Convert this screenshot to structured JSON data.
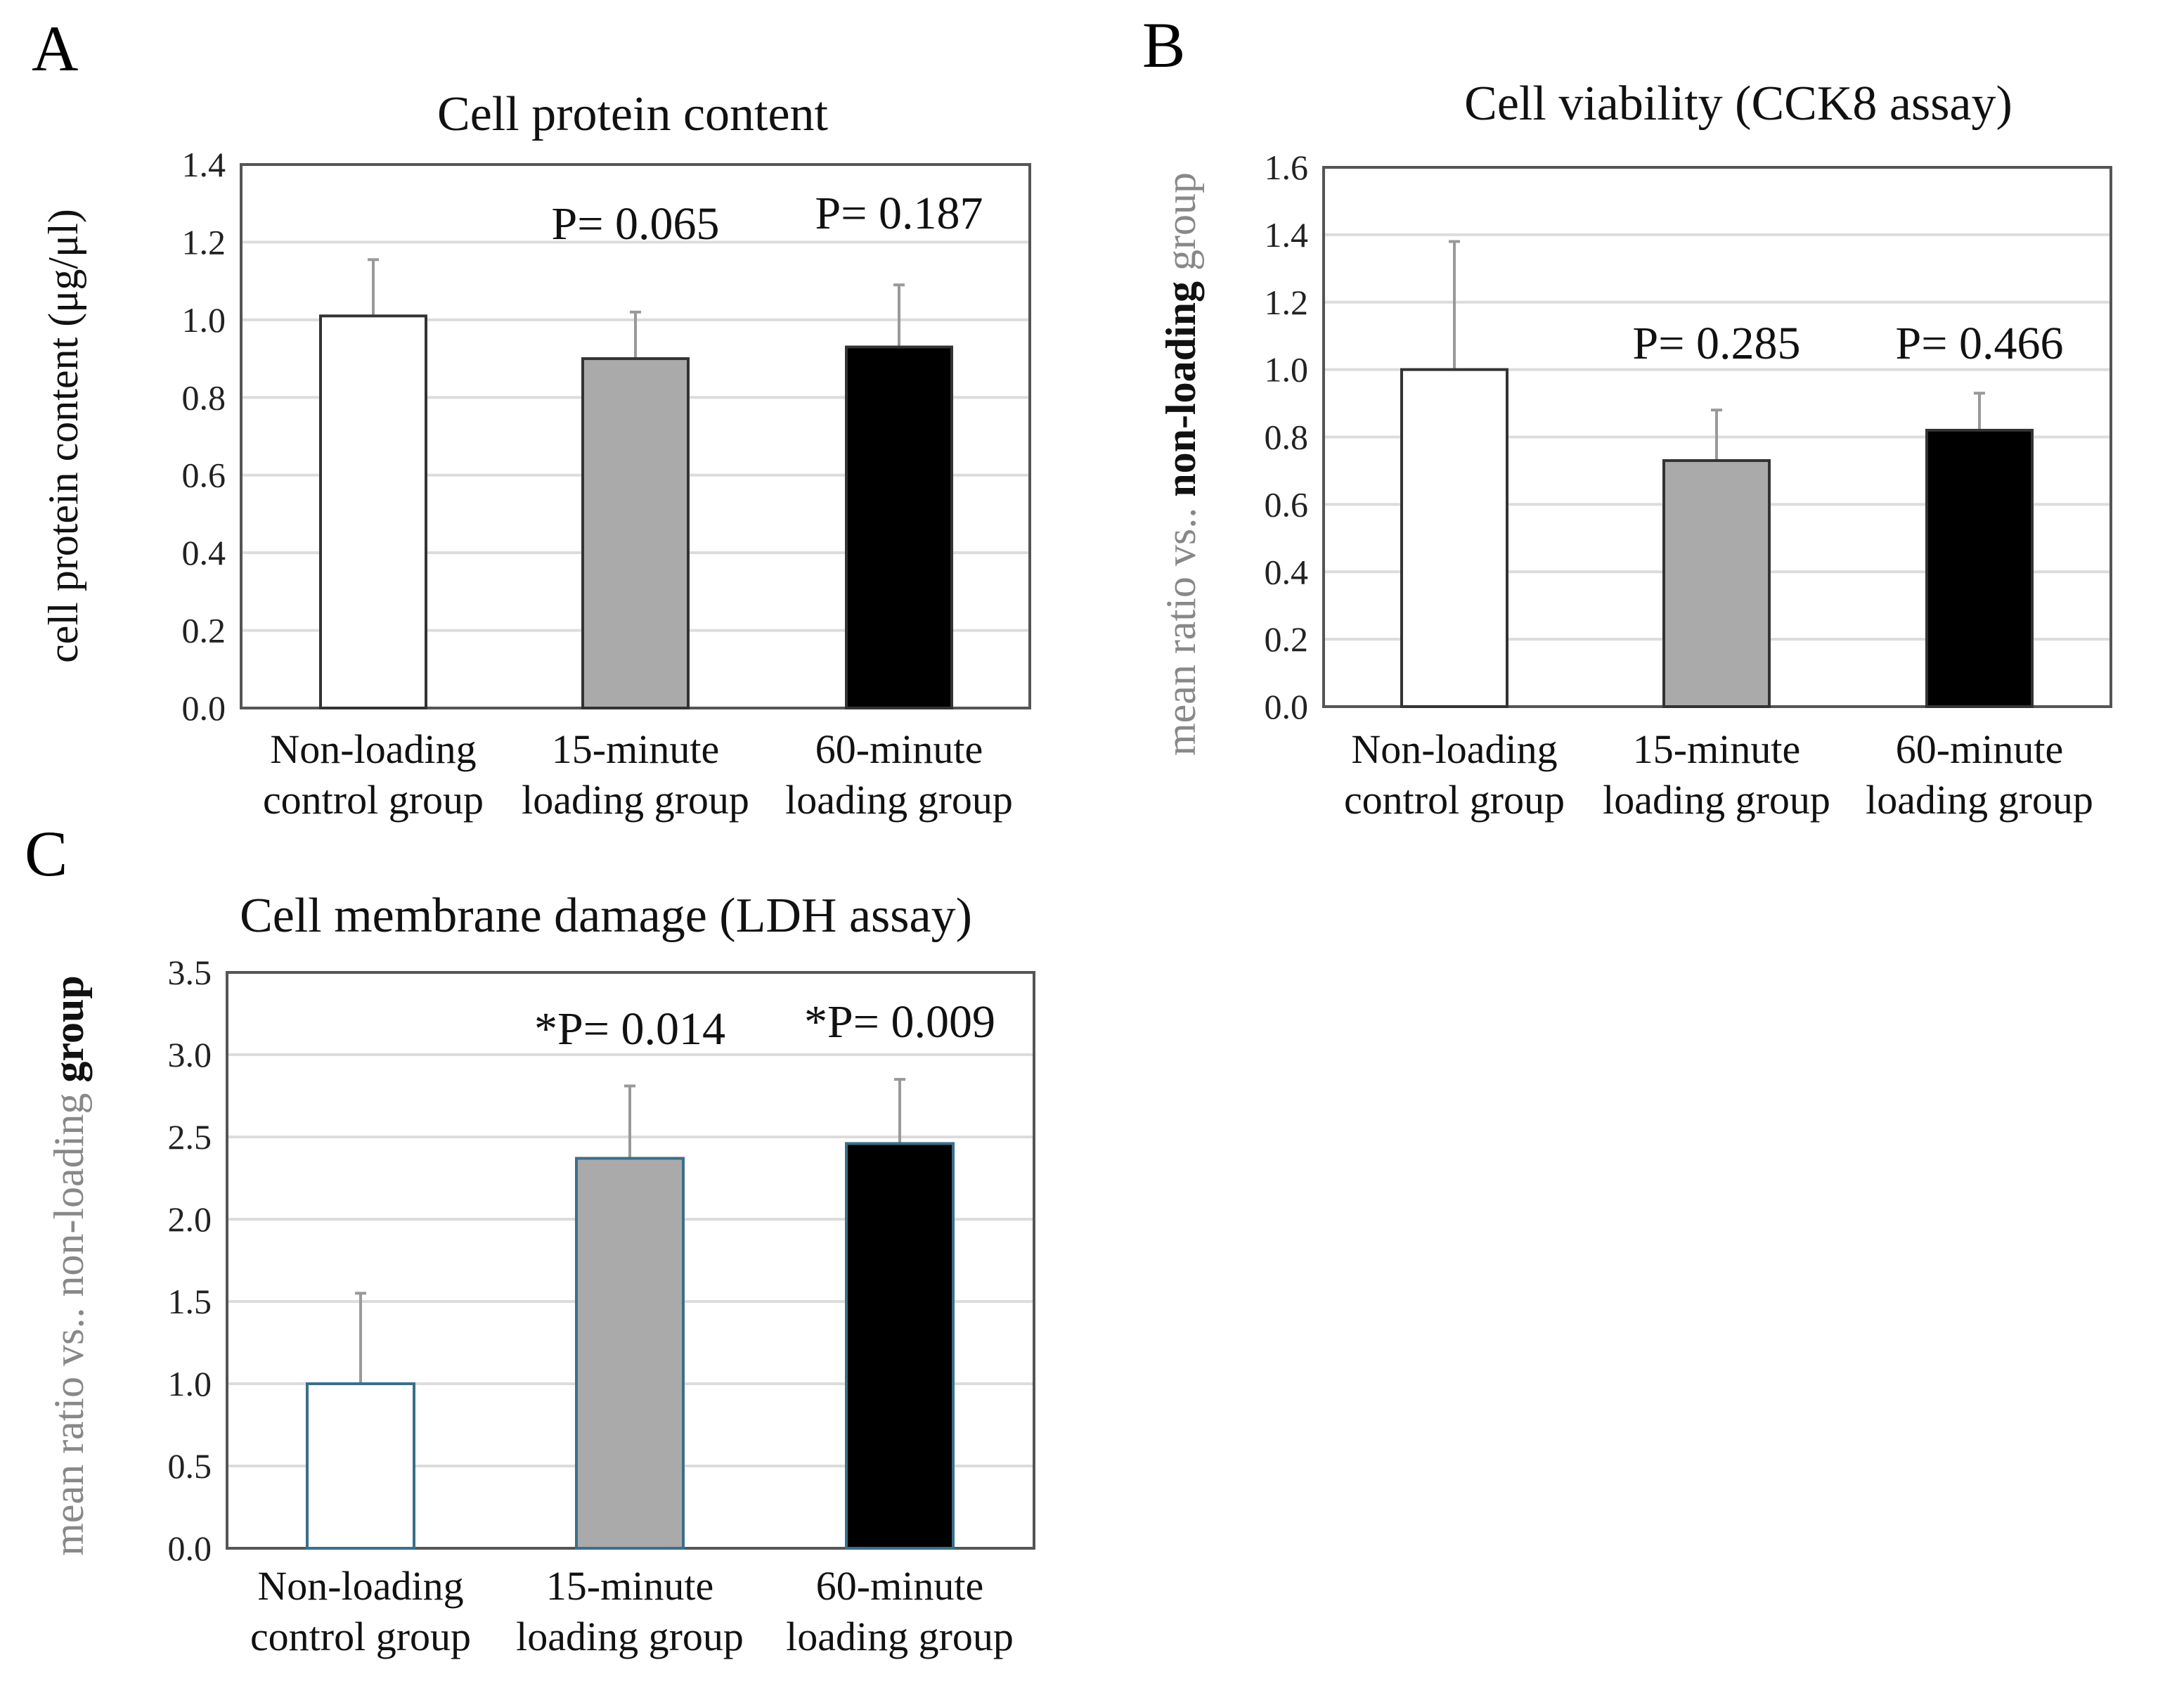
{
  "chart_data": [
    {
      "type": "bar",
      "panel": "A",
      "title": "Cell protein content",
      "ylabel": "cell protein content (μg/μl)",
      "ylabel_parts": [
        {
          "text": "cell protein content (μg/μl)",
          "color": "#111111",
          "bold": false
        }
      ],
      "ylim": [
        0,
        1.4
      ],
      "yticks": [
        "0.0",
        "0.2",
        "0.4",
        "0.6",
        "0.8",
        "1.0",
        "1.2",
        "1.4"
      ],
      "ytick_values": [
        0,
        0.2,
        0.4,
        0.6,
        0.8,
        1.0,
        1.2,
        1.4
      ],
      "categories": [
        [
          "Non-loading",
          "control group"
        ],
        [
          "15-minute",
          "loading group"
        ],
        [
          "60-minute",
          "loading group"
        ]
      ],
      "values": [
        1.01,
        0.9,
        0.93
      ],
      "error_upper": [
        1.155,
        1.02,
        1.09
      ],
      "bar_colors": [
        "#ffffff",
        "#aaaaaa",
        "#000000"
      ],
      "bar_edge": "#333333",
      "annotations": [
        "",
        "P= 0.065",
        "P= 0.187"
      ],
      "grid": true
    },
    {
      "type": "bar",
      "panel": "B",
      "title": "Cell viability (CCK8 assay)",
      "ylabel": "mean ratio vs.. non-loading group",
      "ylabel_parts": [
        {
          "text": "mean ratio vs.. ",
          "color": "#888888",
          "bold": false
        },
        {
          "text": "non-loading",
          "color": "#111111",
          "bold": true
        },
        {
          "text": " group",
          "color": "#888888",
          "bold": false
        }
      ],
      "ylim": [
        0,
        1.6
      ],
      "yticks": [
        "0.0",
        "0.2",
        "0.4",
        "0.6",
        "0.8",
        "1.0",
        "1.2",
        "1.4",
        "1.6"
      ],
      "ytick_values": [
        0,
        0.2,
        0.4,
        0.6,
        0.8,
        1.0,
        1.2,
        1.4,
        1.6
      ],
      "categories": [
        [
          "Non-loading",
          "control group"
        ],
        [
          "15-minute",
          "loading group"
        ],
        [
          "60-minute",
          "loading group"
        ]
      ],
      "values": [
        1.0,
        0.73,
        0.82
      ],
      "error_upper": [
        1.38,
        0.88,
        0.93
      ],
      "bar_colors": [
        "#ffffff",
        "#aaaaaa",
        "#000000"
      ],
      "bar_edge": "#333333",
      "annotations": [
        "",
        "P= 0.285",
        "P= 0.466"
      ],
      "grid": true
    },
    {
      "type": "bar",
      "panel": "C",
      "title": "Cell membrane damage (LDH assay)",
      "ylabel": "mean ratio vs.. non-loading group",
      "ylabel_parts": [
        {
          "text": "mean ratio vs.. non-loading ",
          "color": "#888888",
          "bold": false
        },
        {
          "text": "group",
          "color": "#111111",
          "bold": true
        }
      ],
      "ylim": [
        0,
        3.5
      ],
      "yticks": [
        "0.0",
        "0.5",
        "1.0",
        "1.5",
        "2.0",
        "2.5",
        "3.0",
        "3.5"
      ],
      "ytick_values": [
        0,
        0.5,
        1.0,
        1.5,
        2.0,
        2.5,
        3.0,
        3.5
      ],
      "categories": [
        [
          "Non-loading",
          "control group"
        ],
        [
          "15-minute",
          "loading group"
        ],
        [
          "60-minute",
          "loading group"
        ]
      ],
      "values": [
        1.0,
        2.37,
        2.46
      ],
      "error_upper": [
        1.55,
        2.81,
        2.85
      ],
      "bar_colors": [
        "#ffffff",
        "#aaaaaa",
        "#000000"
      ],
      "bar_edge": "#3a6f8a",
      "annotations": [
        "",
        "*P= 0.014",
        "*P= 0.009"
      ],
      "grid": true
    }
  ]
}
